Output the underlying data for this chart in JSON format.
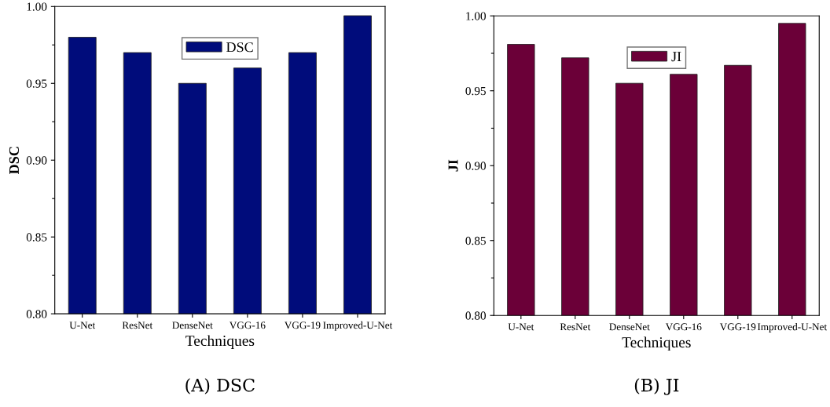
{
  "chart_data": [
    {
      "type": "bar",
      "xlabel": "Techniques",
      "ylabel": "DSC",
      "categories": [
        "U-Net",
        "ResNet",
        "DenseNet",
        "VGG-16",
        "VGG-19",
        "Improved-U-Net"
      ],
      "series": [
        {
          "name": "DSC",
          "color": "#000c7b",
          "values": [
            0.98,
            0.97,
            0.95,
            0.96,
            0.97,
            0.994
          ]
        }
      ],
      "ylim": [
        0.8,
        1.0
      ],
      "yticks": [
        {
          "value": 0.8,
          "label": "0.80"
        },
        {
          "value": 0.825,
          "label": null
        },
        {
          "value": 0.85,
          "label": "0.85"
        },
        {
          "value": 0.875,
          "label": null
        },
        {
          "value": 0.9,
          "label": "0.90"
        },
        {
          "value": 0.925,
          "label": null
        },
        {
          "value": 0.95,
          "label": "0.95"
        },
        {
          "value": 0.975,
          "label": null
        },
        {
          "value": 1.0,
          "label": "1.00"
        }
      ],
      "legend": "top",
      "grid": false,
      "annotations": [
        "(A) DSC"
      ]
    },
    {
      "type": "bar",
      "xlabel": "Techniques",
      "ylabel": "JI",
      "categories": [
        "U-Net",
        "ResNet",
        "DenseNet",
        "VGG-16",
        "VGG-19",
        "Improved-U-Net"
      ],
      "series": [
        {
          "name": "JI",
          "color": "#6b0038",
          "values": [
            0.981,
            0.972,
            0.955,
            0.961,
            0.967,
            0.995
          ]
        }
      ],
      "ylim": [
        0.8,
        1.0
      ],
      "yticks": [
        {
          "value": 0.8,
          "label": "0.80"
        },
        {
          "value": 0.825,
          "label": null
        },
        {
          "value": 0.85,
          "label": "0.85"
        },
        {
          "value": 0.875,
          "label": null
        },
        {
          "value": 0.9,
          "label": "0.90"
        },
        {
          "value": 0.925,
          "label": null
        },
        {
          "value": 0.95,
          "label": "0.95"
        },
        {
          "value": 0.975,
          "label": null
        },
        {
          "value": 1.0,
          "label": "1.00"
        }
      ],
      "legend": "top",
      "grid": false,
      "annotations": [
        "(B) JI"
      ]
    }
  ]
}
